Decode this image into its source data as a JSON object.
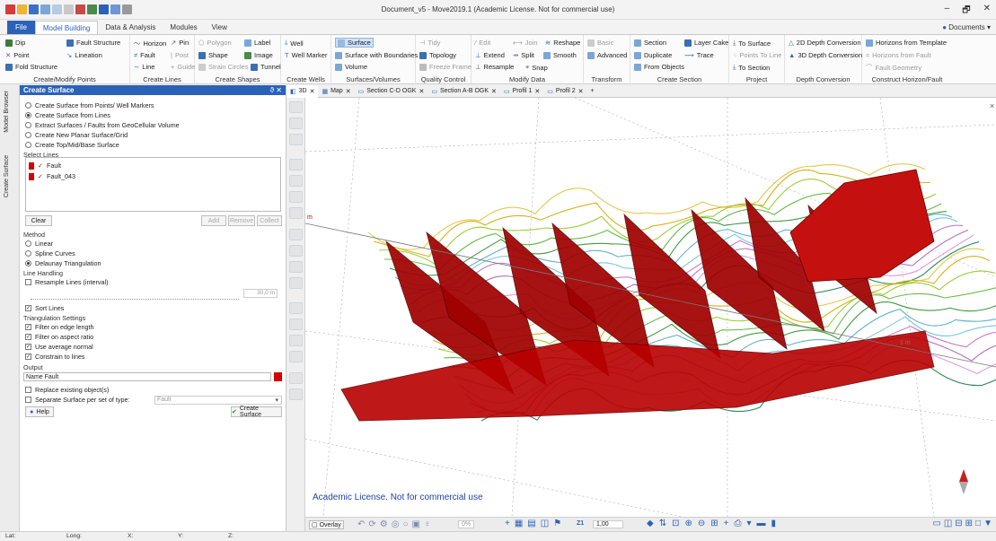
{
  "window": {
    "title": "Document_v5 - Move2019.1 (Academic License. Not for commercial use)",
    "documents_label": "Documents"
  },
  "ribbon_tabs": [
    {
      "label": "File"
    },
    {
      "label": "Model Building"
    },
    {
      "label": "Data & Analysis"
    },
    {
      "label": "Modules"
    },
    {
      "label": "View"
    }
  ],
  "ribbon": {
    "points": {
      "label": "Create/Modify Points",
      "items": [
        "Dip",
        "Fault Structure",
        "Point",
        "Lineation",
        "Fold Structure"
      ]
    },
    "lines": {
      "label": "Create Lines",
      "items": [
        "Horizon",
        "Pin",
        "Fault",
        "Post",
        "Line",
        "Guide"
      ]
    },
    "shapes": {
      "label": "Create Shapes",
      "items": [
        "Polygon",
        "Label",
        "Shape",
        "Image",
        "Strain Circles",
        "Tunnel"
      ]
    },
    "wells": {
      "label": "Create Wells",
      "items": [
        "Well",
        "Well Marker"
      ]
    },
    "surfaces": {
      "label": "Surfaces/Volumes",
      "items": [
        "Surface",
        "Surface with Boundaries",
        "Volume"
      ]
    },
    "quality": {
      "label": "Quality Control",
      "items": [
        "Tidy",
        "Topology",
        "Freeze Frame"
      ]
    },
    "modify": {
      "label": "Modify Data",
      "items": [
        "Edit",
        "Join",
        "Reshape",
        "Extend",
        "Split",
        "Smooth",
        "Resample",
        "Snap"
      ]
    },
    "transform": {
      "label": "Transform",
      "items": [
        "Basic",
        "Advanced"
      ]
    },
    "section": {
      "label": "Create Section",
      "items": [
        "Section",
        "Layer Cake",
        "Duplicate",
        "Trace",
        "From Objects"
      ]
    },
    "project": {
      "label": "Project",
      "items": [
        "To Surface",
        "Points To Line",
        "To Section"
      ]
    },
    "depth": {
      "label": "Depth Conversion",
      "items": [
        "2D Depth Conversion",
        "3D Depth Conversion"
      ]
    },
    "horizon": {
      "label": "Construct Horizon/Fault",
      "items": [
        "Horizons from Template",
        "Horizons from Fault",
        "Fault Geometry"
      ]
    }
  },
  "side_tabs": [
    "Model Browser",
    "Create Surface"
  ],
  "panel": {
    "title": "Create Surface",
    "pin": "ϑ ✕",
    "modes": [
      {
        "label": "Create Surface from Points/ Well Markers",
        "selected": false
      },
      {
        "label": "Create Surface from Lines",
        "selected": true
      },
      {
        "label": "Extract Surfaces / Faults from GeoCellular Volume",
        "selected": false
      },
      {
        "label": "Create New Planar Surface/Grid",
        "selected": false
      },
      {
        "label": "Create Top/Mid/Base Surface",
        "selected": false
      }
    ],
    "select_lines_label": "Select Lines",
    "lines": [
      "Fault",
      "Fault_043"
    ],
    "clear": "Clear",
    "add": "Add",
    "remove": "Remove",
    "collect": "Collect",
    "method_label": "Method",
    "methods": [
      {
        "label": "Linear",
        "selected": false
      },
      {
        "label": "Spline Curves",
        "selected": false
      },
      {
        "label": "Delaunay Triangulation",
        "selected": true
      }
    ],
    "line_handling_label": "Line Handling",
    "resample_label": "Resample Lines (interval)",
    "resample_value": "30,0 m",
    "sort_lines": "Sort Lines",
    "triangulation_label": "Triangulation Settings",
    "tri_options": [
      "Filter on edge length",
      "Filter on aspect ratio",
      "Use average normal",
      "Constrain to lines"
    ],
    "output_label": "Output",
    "name_prefix": "Name",
    "name_value": "Fault",
    "replace": "Replace existing object(s)",
    "separate": "Separate Surface per set of type:",
    "type_value": "Fault",
    "help": "Help",
    "create": "Create Surface"
  },
  "view_tabs": [
    "3D",
    "Map",
    "Section C-D OGK",
    "Section A-B OGK",
    "Profil 1",
    "Profil 2"
  ],
  "viewport": {
    "license_text": "Academic License. Not for commercial use",
    "label_m": "m",
    "label_1m": "1 m"
  },
  "bottom_toolbar": {
    "overlay": "Overlay",
    "percent": "0%",
    "z_label": "Z1",
    "z_value": "1,00"
  },
  "status": [
    "Lat:",
    "Long:",
    "X:",
    "Y:",
    "Z:"
  ],
  "colors": {
    "accent": "#2b62b8",
    "fault": "#b00000",
    "fault_dark": "#6a0000"
  }
}
